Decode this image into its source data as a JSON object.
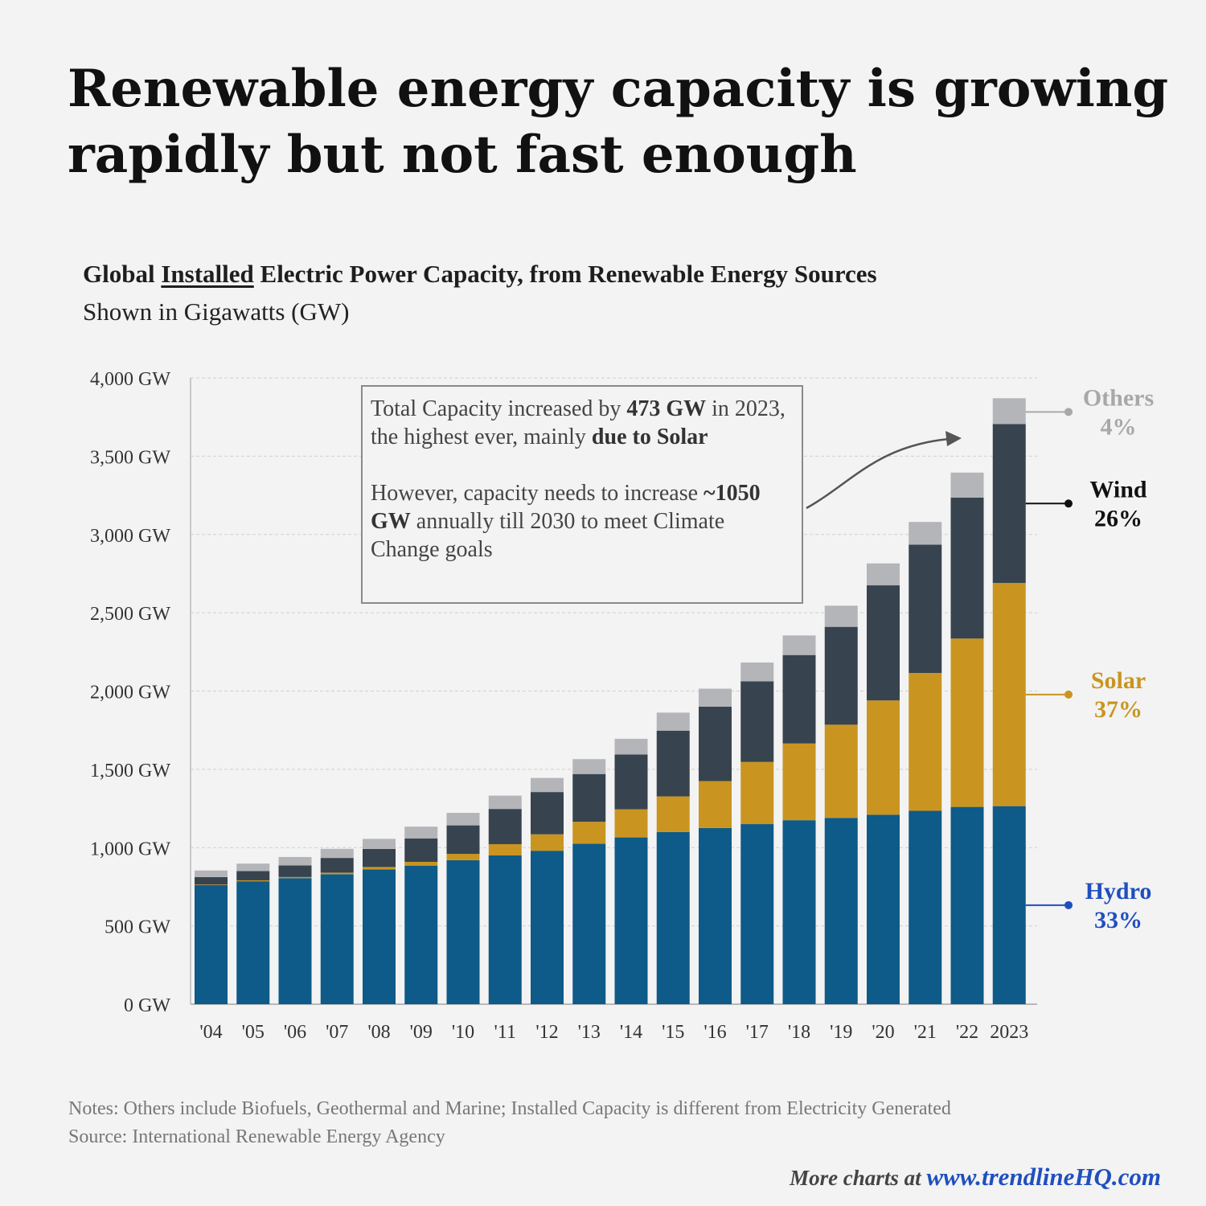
{
  "headline": "Renewable energy capacity is growing rapidly but not fast enough",
  "subtitle": {
    "pre": "Global ",
    "underlined": "Installed",
    "post": " Electric Power Capacity, from Renewable Energy Sources"
  },
  "subtitle2": "Shown in Gigawatts (GW)",
  "callout": {
    "p1_a": "Total Capacity increased by ",
    "p1_b": "473 GW",
    "p1_c": " in 2023, the highest ever, mainly ",
    "p1_d": "due to Solar",
    "p2_a": "However, capacity needs to increase ",
    "p2_b": "~1050 GW",
    "p2_c": " annually till 2030 to meet Climate Change goals"
  },
  "notes": {
    "line1": "Notes:  Others include Biofuels, Geothermal and Marine; Installed Capacity is different from Electricity Generated",
    "line2": "Source: International Renewable Energy Agency"
  },
  "footer": {
    "prefix": "More charts at ",
    "url": "www.trendlineHQ.com"
  },
  "chart_data": {
    "type": "bar",
    "stacked": true,
    "categories": [
      "'04",
      "'05",
      "'06",
      "'07",
      "'08",
      "'09",
      "'10",
      "'11",
      "'12",
      "'13",
      "'14",
      "'15",
      "'16",
      "'17",
      "'18",
      "'19",
      "'20",
      "'21",
      "'22",
      "2023"
    ],
    "series": [
      {
        "name": "Hydro",
        "share": "33%",
        "color": "#0e5a88",
        "values": [
          760,
          785,
          805,
          830,
          860,
          885,
          920,
          950,
          980,
          1025,
          1065,
          1100,
          1125,
          1150,
          1175,
          1190,
          1210,
          1235,
          1260,
          1265
        ]
      },
      {
        "name": "Solar",
        "share": "37%",
        "color": "#c99520",
        "values": [
          4,
          6,
          7,
          10,
          16,
          24,
          40,
          72,
          105,
          140,
          180,
          227,
          300,
          397,
          490,
          595,
          730,
          880,
          1075,
          1425
        ]
      },
      {
        "name": "Wind",
        "share": "26%",
        "color": "#37444f",
        "values": [
          48,
          59,
          74,
          94,
          115,
          150,
          182,
          225,
          270,
          305,
          350,
          420,
          475,
          515,
          565,
          625,
          735,
          820,
          900,
          1015
        ]
      },
      {
        "name": "Others",
        "share": "4%",
        "color": "#b4b5b8",
        "values": [
          42,
          48,
          54,
          58,
          65,
          75,
          80,
          85,
          90,
          95,
          100,
          115,
          115,
          120,
          125,
          135,
          140,
          145,
          160,
          165
        ]
      }
    ],
    "yticks": [
      "0 GW",
      "500 GW",
      "1,000 GW",
      "1,500 GW",
      "2,000 GW",
      "2,500 GW",
      "3,000 GW",
      "3,500 GW",
      "4,000 GW"
    ],
    "ylim": [
      0,
      4000
    ],
    "grid": true,
    "legend": "right, labels beside final bar"
  }
}
